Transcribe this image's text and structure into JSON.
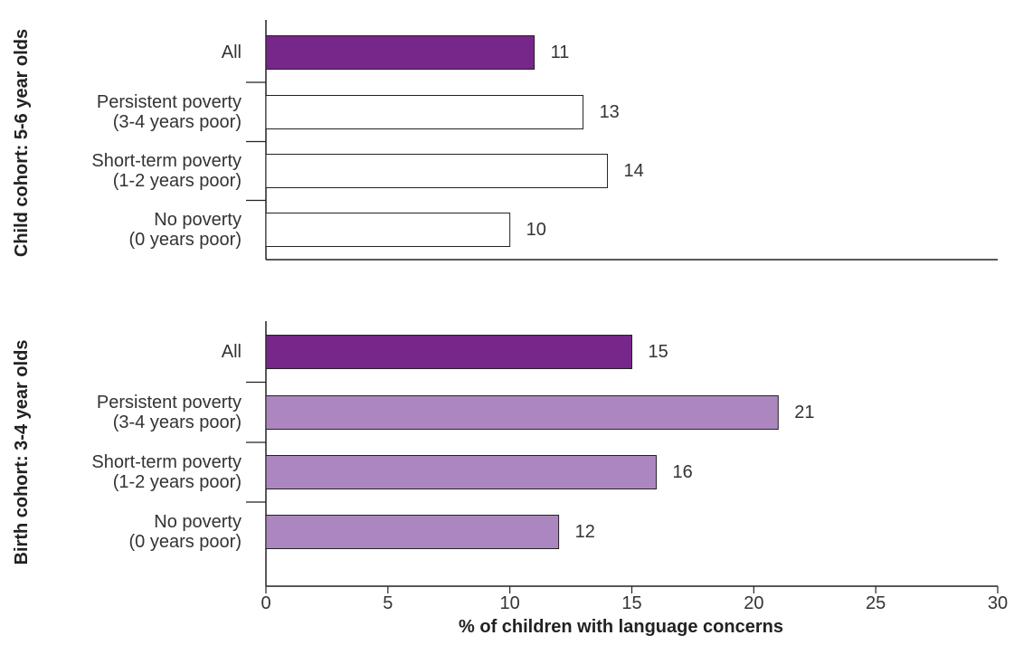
{
  "chart_data": {
    "type": "bar",
    "orientation": "horizontal",
    "xlabel": "% of children with language concerns",
    "xlim": [
      0,
      30
    ],
    "xticks": [
      0,
      5,
      10,
      15,
      20,
      25,
      30
    ],
    "grid": false,
    "panels": [
      {
        "title": "Child cohort: 5-6 year olds",
        "categories": [
          [
            "All"
          ],
          [
            "Persistent poverty",
            "(3-4 years poor)"
          ],
          [
            "Short-term poverty",
            "(1-2 years poor)"
          ],
          [
            "No poverty",
            "(0 years poor)"
          ]
        ],
        "values": [
          11,
          13,
          14,
          10
        ],
        "colors": [
          "#77268a",
          "#ffffff",
          "#ffffff",
          "#ffffff"
        ]
      },
      {
        "title": "Birth cohort: 3-4 year olds",
        "categories": [
          [
            "All"
          ],
          [
            "Persistent poverty",
            "(3-4 years poor)"
          ],
          [
            "Short-term poverty",
            "(1-2 years poor)"
          ],
          [
            "No poverty",
            "(0 years poor)"
          ]
        ],
        "values": [
          15,
          21,
          16,
          12
        ],
        "colors": [
          "#77268a",
          "#ac87bf",
          "#ac87bf",
          "#ac87bf"
        ]
      }
    ]
  }
}
